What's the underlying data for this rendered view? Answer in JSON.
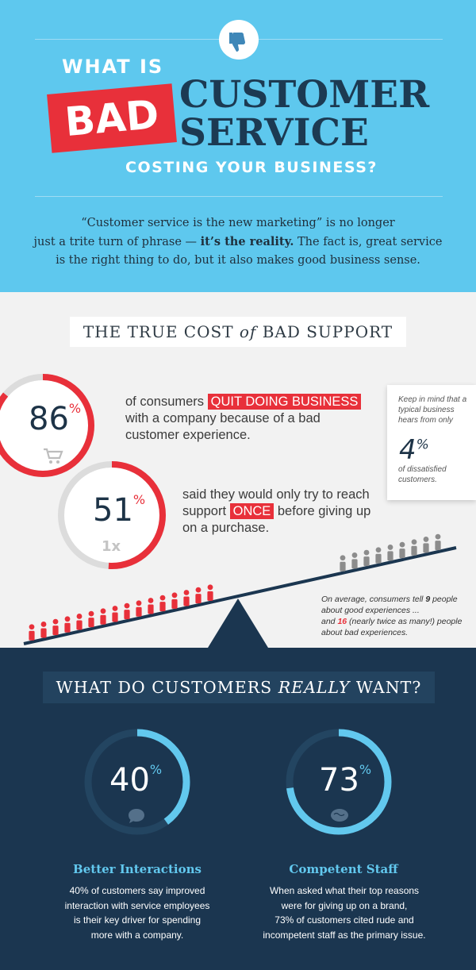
{
  "header": {
    "thumbs_icon": "thumbs-down-icon",
    "what_is": "WHAT IS",
    "bad": "BAD",
    "customer": "CUSTOMER",
    "service": "SERVICE",
    "costing": "COSTING YOUR BUSINESS?",
    "intro_part1": "“Customer service is the new marketing” is no longer",
    "intro_part2": "just a trite turn of phrase — ",
    "intro_bold": "it’s the reality.",
    "intro_part3": " The fact is, great service",
    "intro_part4": "is the right thing to do, but it also makes good business sense."
  },
  "true_cost": {
    "title_a": "THE TRUE COST ",
    "title_of": "of",
    "title_b": " BAD SUPPORT",
    "stat1": {
      "value": "86",
      "percent": 86,
      "unit": "%",
      "icon": "shopping-cart-icon",
      "text_a": "of consumers ",
      "highlight": "QUIT DOING BUSINESS",
      "text_b": "with a company because of a bad",
      "text_c": "customer experience."
    },
    "stat2": {
      "value": "51",
      "percent": 51,
      "unit": "%",
      "tag": "1x",
      "text_a": "said they would only try to reach",
      "text_b": "support ",
      "highlight": "ONCE",
      "text_c": " before giving up",
      "text_d": "on a purchase."
    },
    "note": {
      "line1": "Keep in mind that a typical business hears from only",
      "value": "4",
      "unit": "%",
      "line2": "of dissatisfied customers."
    },
    "word_of_mouth": {
      "a": "On average, consumers tell ",
      "good_count": "9",
      "b": " people about good experiences ...",
      "c": "and ",
      "bad_count": "16",
      "d": " (nearly twice as many!) people about bad experiences."
    }
  },
  "want": {
    "title_a": "WHAT DO CUSTOMERS ",
    "title_really": "REALLY",
    "title_b": " WANT?",
    "cards": [
      {
        "value": "40",
        "percent": 40,
        "unit": "%",
        "icon": "speech-bubble-icon",
        "heading": "Better Interactions",
        "body_1": "40% of customers say improved",
        "body_2": "interaction with service employees",
        "body_3": "is their key driver for spending",
        "body_4": "more with a company."
      },
      {
        "value": "73",
        "percent": 73,
        "unit": "%",
        "icon": "brain-icon",
        "heading": "Competent Staff",
        "body_1": "When asked what their top reasons",
        "body_2": "were for giving up on a brand,",
        "body_3": "73% of customers cited rude and",
        "body_4": "incompetent staff as the primary issue."
      }
    ]
  },
  "colors": {
    "sky": "#5ec8ee",
    "red": "#e8303a",
    "navy": "#1b3650",
    "dark_text": "#1c3a52",
    "light_blue": "#62c8ee",
    "gray": "#dcdcdc"
  }
}
